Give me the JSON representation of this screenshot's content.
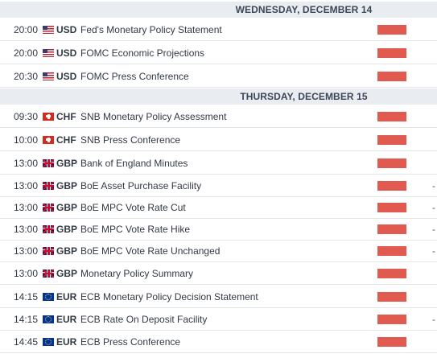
{
  "days": [
    {
      "label": "WEDNESDAY, DECEMBER 14",
      "events": [
        {
          "time": "20:00",
          "flag": "us-flag-icon",
          "currency": "USD",
          "title": "Fed's Monetary Policy Statement",
          "impact": "high",
          "extra": ""
        },
        {
          "time": "20:00",
          "flag": "us-flag-icon",
          "currency": "USD",
          "title": "FOMC Economic Projections",
          "impact": "high",
          "extra": ""
        },
        {
          "time": "20:30",
          "flag": "us-flag-icon",
          "currency": "USD",
          "title": "FOMC Press Conference",
          "impact": "high",
          "extra": ""
        }
      ]
    },
    {
      "label": "THURSDAY, DECEMBER 15",
      "events": [
        {
          "time": "09:30",
          "flag": "ch-flag-icon",
          "currency": "CHF",
          "title": "SNB Monetary Policy Assessment",
          "impact": "high",
          "extra": ""
        },
        {
          "time": "10:00",
          "flag": "ch-flag-icon",
          "currency": "CHF",
          "title": "SNB Press Conference",
          "impact": "high",
          "extra": ""
        },
        {
          "time": "13:00",
          "flag": "gb-flag-icon",
          "currency": "GBP",
          "title": "Bank of England Minutes",
          "impact": "high",
          "extra": ""
        },
        {
          "time": "13:00",
          "flag": "gb-flag-icon",
          "currency": "GBP",
          "title": "BoE Asset Purchase Facility",
          "impact": "high",
          "extra": "-"
        },
        {
          "time": "13:00",
          "flag": "gb-flag-icon",
          "currency": "GBP",
          "title": "BoE MPC Vote Rate Cut",
          "impact": "high",
          "extra": "-"
        },
        {
          "time": "13:00",
          "flag": "gb-flag-icon",
          "currency": "GBP",
          "title": "BoE MPC Vote Rate Hike",
          "impact": "high",
          "extra": "-"
        },
        {
          "time": "13:00",
          "flag": "gb-flag-icon",
          "currency": "GBP",
          "title": "BoE MPC Vote Rate Unchanged",
          "impact": "high",
          "extra": "-"
        },
        {
          "time": "13:00",
          "flag": "gb-flag-icon",
          "currency": "GBP",
          "title": "Monetary Policy Summary",
          "impact": "high",
          "extra": ""
        },
        {
          "time": "14:15",
          "flag": "eu-flag-icon",
          "currency": "EUR",
          "title": "ECB Monetary Policy Decision Statement",
          "impact": "high",
          "extra": ""
        },
        {
          "time": "14:15",
          "flag": "eu-flag-icon",
          "currency": "EUR",
          "title": "ECB Rate On Deposit Facility",
          "impact": "high",
          "extra": "-"
        },
        {
          "time": "14:45",
          "flag": "eu-flag-icon",
          "currency": "EUR",
          "title": "ECB Press Conference",
          "impact": "high",
          "extra": ""
        }
      ]
    }
  ],
  "colors": {
    "impact_high": "#e05a4f",
    "header_bg": "#e9ecf0"
  }
}
